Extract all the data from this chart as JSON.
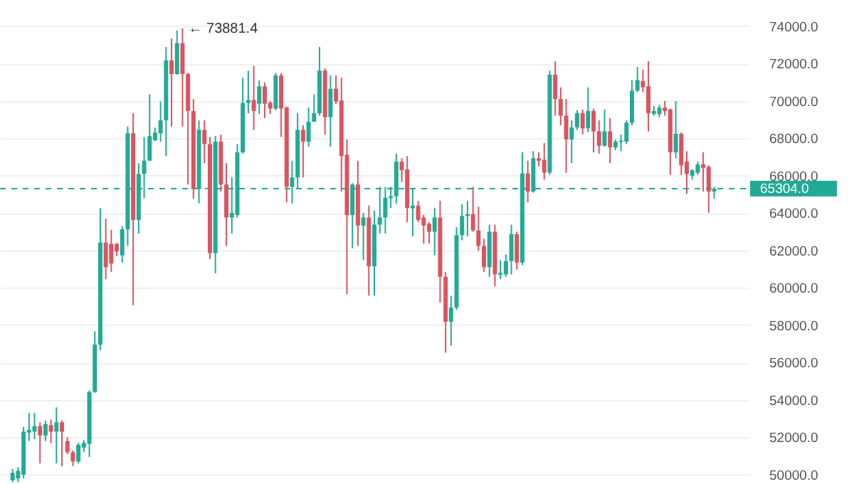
{
  "chart_data": {
    "type": "candlestick",
    "categories": [
      null,
      null,
      null,
      null,
      null,
      null,
      null,
      null,
      null,
      null,
      null,
      null,
      null,
      null,
      null,
      null,
      null,
      null,
      null,
      null,
      null,
      null,
      null,
      null,
      null,
      null,
      null,
      null,
      null,
      null,
      null,
      null,
      null,
      null,
      null,
      null,
      null,
      null,
      null,
      null,
      null,
      null,
      null,
      null,
      null,
      null,
      null,
      null,
      null,
      null,
      null,
      null,
      null,
      null,
      null,
      null,
      null,
      null,
      null,
      null,
      null,
      null,
      null,
      null,
      null,
      null,
      null,
      null,
      null,
      null,
      null,
      null,
      null,
      null,
      null,
      null,
      null,
      null,
      null,
      null,
      null,
      null,
      null,
      null,
      null,
      null,
      null,
      null,
      null,
      null,
      null,
      null,
      null,
      null,
      null,
      null,
      null,
      null,
      null,
      null,
      null,
      null,
      null,
      null,
      null,
      null,
      null,
      null,
      null,
      null,
      null,
      null,
      null,
      null,
      null,
      null,
      null,
      null,
      null,
      null,
      null,
      null,
      null,
      null,
      null,
      null,
      null,
      null,
      null
    ],
    "ohlc": [
      [
        49700,
        50300,
        49600,
        50100
      ],
      [
        49800,
        50400,
        49600,
        50200
      ],
      [
        50000,
        52550,
        49800,
        52300
      ],
      [
        52250,
        53300,
        51800,
        52400
      ],
      [
        52300,
        53300,
        51900,
        52600
      ],
      [
        52600,
        52800,
        50600,
        52100
      ],
      [
        52100,
        52900,
        51800,
        52700
      ],
      [
        52650,
        52950,
        51680,
        52300
      ],
      [
        52300,
        53600,
        50600,
        52800
      ],
      [
        52800,
        52900,
        50450,
        52300
      ],
      [
        51800,
        52000,
        51100,
        51200
      ],
      [
        51200,
        51300,
        50450,
        50700
      ],
      [
        50700,
        51700,
        50600,
        51600
      ],
      [
        51450,
        51850,
        51200,
        51700
      ],
      [
        51650,
        54500,
        50950,
        54430
      ],
      [
        54430,
        57670,
        54380,
        56960
      ],
      [
        56960,
        64260,
        56660,
        62420
      ],
      [
        62420,
        63700,
        60460,
        61100
      ],
      [
        62350,
        63100,
        60850,
        61300
      ],
      [
        62350,
        62400,
        61700,
        61950
      ],
      [
        61730,
        63300,
        61350,
        63130
      ],
      [
        63130,
        68630,
        62240,
        68270
      ],
      [
        68270,
        69340,
        59070,
        63630
      ],
      [
        63630,
        66670,
        62900,
        66090
      ],
      [
        66090,
        68070,
        64800,
        66800
      ],
      [
        66800,
        70350,
        66800,
        68120
      ],
      [
        67900,
        68570,
        67850,
        68300
      ],
      [
        68270,
        69970,
        67820,
        68960
      ],
      [
        68960,
        72885,
        67050,
        72170
      ],
      [
        72170,
        73340,
        68630,
        71440
      ],
      [
        71440,
        73770,
        71400,
        73090
      ],
      [
        73090,
        73881.4,
        68630,
        71440
      ],
      [
        71440,
        71500,
        65530,
        69460
      ],
      [
        69460,
        70100,
        64770,
        65280
      ],
      [
        65280,
        68960,
        64520,
        68450
      ],
      [
        68450,
        68960,
        66670,
        67690
      ],
      [
        67690,
        68070,
        61530,
        61860
      ],
      [
        61860,
        68120,
        60770,
        67820
      ],
      [
        67820,
        68200,
        65150,
        65530
      ],
      [
        65530,
        66670,
        62240,
        63760
      ],
      [
        63760,
        65910,
        62900,
        64010
      ],
      [
        63890,
        67690,
        63760,
        67250
      ],
      [
        67250,
        71240,
        67180,
        69890
      ],
      [
        69890,
        71620,
        69340,
        70050
      ],
      [
        70050,
        71870,
        68450,
        69460
      ],
      [
        69850,
        71100,
        69300,
        70780
      ],
      [
        70780,
        70990,
        69080,
        69850
      ],
      [
        69900,
        70000,
        69300,
        69590
      ],
      [
        69590,
        71500,
        69500,
        71360
      ],
      [
        71360,
        71490,
        68070,
        69590
      ],
      [
        69650,
        69700,
        64570,
        65400
      ],
      [
        65400,
        66800,
        64520,
        65910
      ],
      [
        65910,
        69340,
        65280,
        68450
      ],
      [
        68450,
        68700,
        65900,
        67820
      ],
      [
        67820,
        69640,
        67560,
        68880
      ],
      [
        68880,
        70350,
        68880,
        69340
      ],
      [
        69340,
        72885,
        69210,
        71620
      ],
      [
        71620,
        71750,
        68200,
        69130
      ],
      [
        69130,
        71360,
        67560,
        70650
      ],
      [
        70650,
        71360,
        69840,
        69970
      ],
      [
        70020,
        71240,
        65150,
        67050
      ],
      [
        67120,
        67940,
        59650,
        63890
      ],
      [
        63890,
        65600,
        62110,
        65530
      ],
      [
        65530,
        66800,
        62240,
        63330
      ],
      [
        63330,
        64010,
        61480,
        63760
      ],
      [
        63760,
        64400,
        59580,
        61150
      ],
      [
        61150,
        64140,
        59580,
        63380
      ],
      [
        63380,
        65400,
        62900,
        63760
      ],
      [
        63760,
        65400,
        62900,
        64820
      ],
      [
        64800,
        65400,
        64270,
        64900
      ],
      [
        64900,
        67180,
        64500,
        66750
      ],
      [
        66750,
        66930,
        65660,
        66290
      ],
      [
        66340,
        67050,
        63510,
        64270
      ],
      [
        64250,
        65280,
        62750,
        64400
      ],
      [
        64400,
        64650,
        63510,
        63630
      ],
      [
        63760,
        63900,
        62360,
        63330
      ],
      [
        63430,
        63500,
        62360,
        63000
      ],
      [
        63000,
        64270,
        61730,
        63760
      ],
      [
        63760,
        64650,
        59200,
        60590
      ],
      [
        60590,
        60840,
        56530,
        58180
      ],
      [
        58180,
        59580,
        56910,
        58940
      ],
      [
        58940,
        63250,
        58820,
        62820
      ],
      [
        62820,
        64470,
        62540,
        63840
      ],
      [
        63840,
        64650,
        62750,
        63940
      ],
      [
        63940,
        65400,
        63000,
        63070
      ],
      [
        63070,
        64340,
        61980,
        62240
      ],
      [
        62240,
        62620,
        60840,
        61100
      ],
      [
        61100,
        63380,
        60590,
        63000
      ],
      [
        63000,
        63380,
        60080,
        60720
      ],
      [
        60700,
        61480,
        60460,
        60800
      ],
      [
        60720,
        61780,
        60590,
        61430
      ],
      [
        61430,
        63380,
        60720,
        62870
      ],
      [
        62870,
        63000,
        60970,
        61350
      ],
      [
        61350,
        67250,
        61220,
        66120
      ],
      [
        66120,
        66800,
        64570,
        65150
      ],
      [
        65150,
        67310,
        65090,
        66930
      ],
      [
        66930,
        67250,
        66500,
        66800
      ],
      [
        66850,
        67740,
        65790,
        66160
      ],
      [
        66160,
        71620,
        66040,
        71400
      ],
      [
        71400,
        72120,
        69210,
        70100
      ],
      [
        70100,
        70730,
        68700,
        69210
      ],
      [
        69210,
        70100,
        66160,
        67940
      ],
      [
        67940,
        68960,
        66670,
        68580
      ],
      [
        68580,
        69510,
        68450,
        69340
      ],
      [
        69340,
        69540,
        68200,
        68530
      ],
      [
        68530,
        70730,
        68330,
        69460
      ],
      [
        69460,
        69590,
        67250,
        68370
      ],
      [
        68370,
        68960,
        67180,
        67600
      ],
      [
        67600,
        69540,
        67560,
        68370
      ],
      [
        68370,
        69080,
        66670,
        67510
      ],
      [
        67510,
        67940,
        67360,
        67820
      ],
      [
        67800,
        68200,
        67310,
        67870
      ],
      [
        67820,
        68960,
        67690,
        68830
      ],
      [
        68830,
        71110,
        68700,
        70550
      ],
      [
        70550,
        71820,
        70470,
        71110
      ],
      [
        71060,
        71670,
        70470,
        70730
      ],
      [
        70780,
        72120,
        68370,
        69340
      ],
      [
        69300,
        69720,
        69210,
        69460
      ],
      [
        69300,
        69790,
        69130,
        69640
      ],
      [
        69640,
        70000,
        69210,
        69460
      ],
      [
        69540,
        69590,
        66040,
        67250
      ],
      [
        67250,
        70000,
        66930,
        68240
      ],
      [
        68240,
        68320,
        66040,
        66550
      ],
      [
        66750,
        67310,
        65030,
        66090
      ],
      [
        66000,
        66340,
        65790,
        66290
      ],
      [
        66160,
        66750,
        66040,
        66600
      ],
      [
        66600,
        67250,
        65150,
        66420
      ],
      [
        66470,
        66550,
        64010,
        65150
      ],
      [
        65150,
        65400,
        64770,
        65304
      ]
    ],
    "colors": [
      "#22ab94",
      "#22ab94",
      "#22ab94",
      "#22ab94",
      "#22ab94",
      "#db5461",
      "#22ab94",
      "#db5461",
      "#22ab94",
      "#db5461",
      "#db5461",
      "#db5461",
      "#22ab94",
      "#22ab94",
      "#22ab94",
      "#22ab94",
      "#22ab94",
      "#db5461",
      "#db5461",
      "#db5461",
      "#22ab94",
      "#22ab94",
      "#db5461",
      "#22ab94",
      "#22ab94",
      "#22ab94",
      "#22ab94",
      "#22ab94",
      "#22ab94",
      "#db5461",
      "#22ab94",
      "#db5461",
      "#db5461",
      "#db5461",
      "#22ab94",
      "#db5461",
      "#db5461",
      "#22ab94",
      "#db5461",
      "#db5461",
      "#22ab94",
      "#22ab94",
      "#22ab94",
      "#22ab94",
      "#db5461",
      "#22ab94",
      "#db5461",
      "#db5461",
      "#22ab94",
      "#db5461",
      "#db5461",
      "#22ab94",
      "#22ab94",
      "#db5461",
      "#22ab94",
      "#22ab94",
      "#22ab94",
      "#db5461",
      "#22ab94",
      "#db5461",
      "#db5461",
      "#db5461",
      "#22ab94",
      "#db5461",
      "#22ab94",
      "#db5461",
      "#22ab94",
      "#22ab94",
      "#22ab94",
      "#22ab94",
      "#22ab94",
      "#db5461",
      "#db5461",
      "#22ab94",
      "#db5461",
      "#db5461",
      "#db5461",
      "#22ab94",
      "#db5461",
      "#db5461",
      "#22ab94",
      "#22ab94",
      "#22ab94",
      "#22ab94",
      "#db5461",
      "#db5461",
      "#db5461",
      "#22ab94",
      "#db5461",
      "#22ab94",
      "#22ab94",
      "#22ab94",
      "#db5461",
      "#22ab94",
      "#db5461",
      "#22ab94",
      "#db5461",
      "#db5461",
      "#22ab94",
      "#db5461",
      "#db5461",
      "#db5461",
      "#22ab94",
      "#22ab94",
      "#db5461",
      "#22ab94",
      "#db5461",
      "#db5461",
      "#22ab94",
      "#db5461",
      "#22ab94",
      "#22ab94",
      "#22ab94",
      "#22ab94",
      "#22ab94",
      "#db5461",
      "#db5461",
      "#22ab94",
      "#22ab94",
      "#db5461",
      "#db5461",
      "#22ab94",
      "#db5461",
      "#db5461",
      "#22ab94",
      "#22ab94",
      "#db5461",
      "#db5461",
      "#22ab94"
    ],
    "ylim": [
      49500,
      75400
    ],
    "yticks": [
      {
        "value": 50000,
        "label": "50000.0"
      },
      {
        "value": 52000,
        "label": "52000.0"
      },
      {
        "value": 54000,
        "label": "54000.0"
      },
      {
        "value": 56000,
        "label": "56000.0"
      },
      {
        "value": 58000,
        "label": "58000.0"
      },
      {
        "value": 60000,
        "label": "60000.0"
      },
      {
        "value": 62000,
        "label": "62000.0"
      },
      {
        "value": 64000,
        "label": "64000.0"
      },
      {
        "value": 66000,
        "label": "66000.0"
      },
      {
        "value": 68000,
        "label": "68000.0"
      },
      {
        "value": 70000,
        "label": "70000.0"
      },
      {
        "value": 72000,
        "label": "72000.0"
      },
      {
        "value": 74000,
        "label": "74000.0"
      }
    ],
    "ref_lines": [
      {
        "axis": "y",
        "value": 65304.0,
        "label": "65304.0",
        "color": "#22ab94",
        "line_style": "dashed"
      }
    ],
    "annotations": [
      "← 73881.4"
    ],
    "grid": "y"
  }
}
